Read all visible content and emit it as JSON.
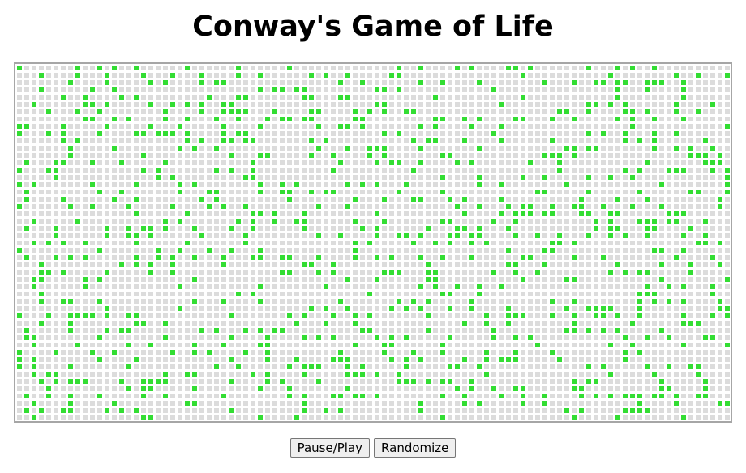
{
  "title": "Conway's Game of Life",
  "controls": {
    "pause_play_label": "Pause/Play",
    "randomize_label": "Randomize"
  },
  "board": {
    "columns": 98,
    "rows": 49,
    "dead_color": "#dcdcdc",
    "live_color": "#33dd33",
    "border_color": "#a6a6a6"
  }
}
